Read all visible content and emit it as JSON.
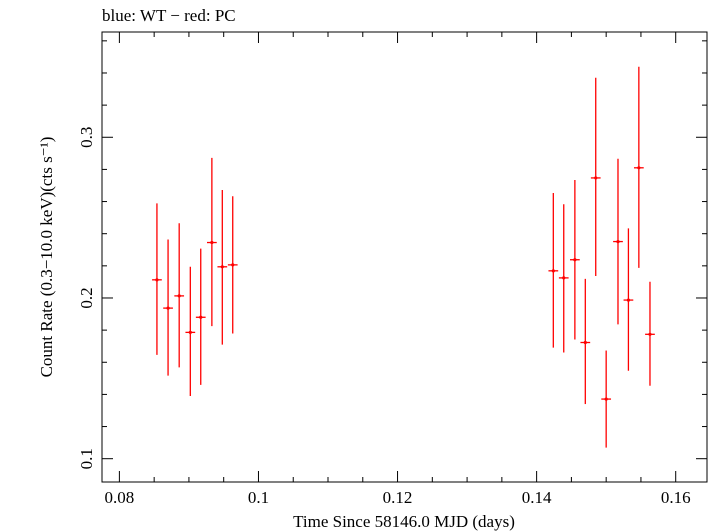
{
  "chart_data": {
    "type": "scatter",
    "title": "blue: WT − red: PC",
    "xlabel": "Time Since 58146.0 MJD (days)",
    "ylabel": "Count Rate (0.3−10.0 keV)(cts s⁻¹)",
    "xlim": [
      0.0775,
      0.1645
    ],
    "ylim": [
      0.0855,
      0.3655
    ],
    "x_ticks": [
      0.08,
      0.1,
      0.12,
      0.14,
      0.16
    ],
    "x_tick_labels": [
      "0.08",
      "0.1",
      "0.12",
      "0.14",
      "0.16"
    ],
    "y_ticks": [
      0.1,
      0.2,
      0.3
    ],
    "y_tick_labels": [
      "0.1",
      "0.2",
      "0.3"
    ],
    "grid": false,
    "series": [
      {
        "color": "#ff0000",
        "points": [
          {
            "x": 0.0854,
            "xerr": 0.0007,
            "y": 0.2113,
            "yerr_lo": 0.0467,
            "yerr_hi": 0.0476
          },
          {
            "x": 0.087,
            "xerr": 0.0007,
            "y": 0.1937,
            "yerr_lo": 0.042,
            "yerr_hi": 0.0427
          },
          {
            "x": 0.0886,
            "xerr": 0.0007,
            "y": 0.2013,
            "yerr_lo": 0.0445,
            "yerr_hi": 0.0452
          },
          {
            "x": 0.0902,
            "xerr": 0.0007,
            "y": 0.1786,
            "yerr_lo": 0.0396,
            "yerr_hi": 0.0408
          },
          {
            "x": 0.0917,
            "xerr": 0.0007,
            "y": 0.188,
            "yerr_lo": 0.0421,
            "yerr_hi": 0.0427
          },
          {
            "x": 0.0933,
            "xerr": 0.0007,
            "y": 0.2345,
            "yerr_lo": 0.052,
            "yerr_hi": 0.0527
          },
          {
            "x": 0.0948,
            "xerr": 0.0007,
            "y": 0.2194,
            "yerr_lo": 0.0484,
            "yerr_hi": 0.0478
          },
          {
            "x": 0.0963,
            "xerr": 0.0007,
            "y": 0.2206,
            "yerr_lo": 0.0427,
            "yerr_hi": 0.0427
          },
          {
            "x": 0.1424,
            "xerr": 0.0007,
            "y": 0.2169,
            "yerr_lo": 0.0478,
            "yerr_hi": 0.0484
          },
          {
            "x": 0.1439,
            "xerr": 0.0007,
            "y": 0.2125,
            "yerr_lo": 0.0464,
            "yerr_hi": 0.0458
          },
          {
            "x": 0.1455,
            "xerr": 0.0007,
            "y": 0.2238,
            "yerr_lo": 0.0496,
            "yerr_hi": 0.0496
          },
          {
            "x": 0.147,
            "xerr": 0.0007,
            "y": 0.1723,
            "yerr_lo": 0.0383,
            "yerr_hi": 0.0396
          },
          {
            "x": 0.1485,
            "xerr": 0.0007,
            "y": 0.2747,
            "yerr_lo": 0.061,
            "yerr_hi": 0.0623
          },
          {
            "x": 0.15,
            "xerr": 0.0007,
            "y": 0.1371,
            "yerr_lo": 0.0302,
            "yerr_hi": 0.0302
          },
          {
            "x": 0.1517,
            "xerr": 0.0007,
            "y": 0.2351,
            "yerr_lo": 0.0515,
            "yerr_hi": 0.0515
          },
          {
            "x": 0.1532,
            "xerr": 0.0007,
            "y": 0.1987,
            "yerr_lo": 0.044,
            "yerr_hi": 0.0446
          },
          {
            "x": 0.1547,
            "xerr": 0.0007,
            "y": 0.281,
            "yerr_lo": 0.0623,
            "yerr_hi": 0.0629
          },
          {
            "x": 0.1563,
            "xerr": 0.0007,
            "y": 0.1774,
            "yerr_lo": 0.032,
            "yerr_hi": 0.0327
          }
        ]
      }
    ]
  }
}
